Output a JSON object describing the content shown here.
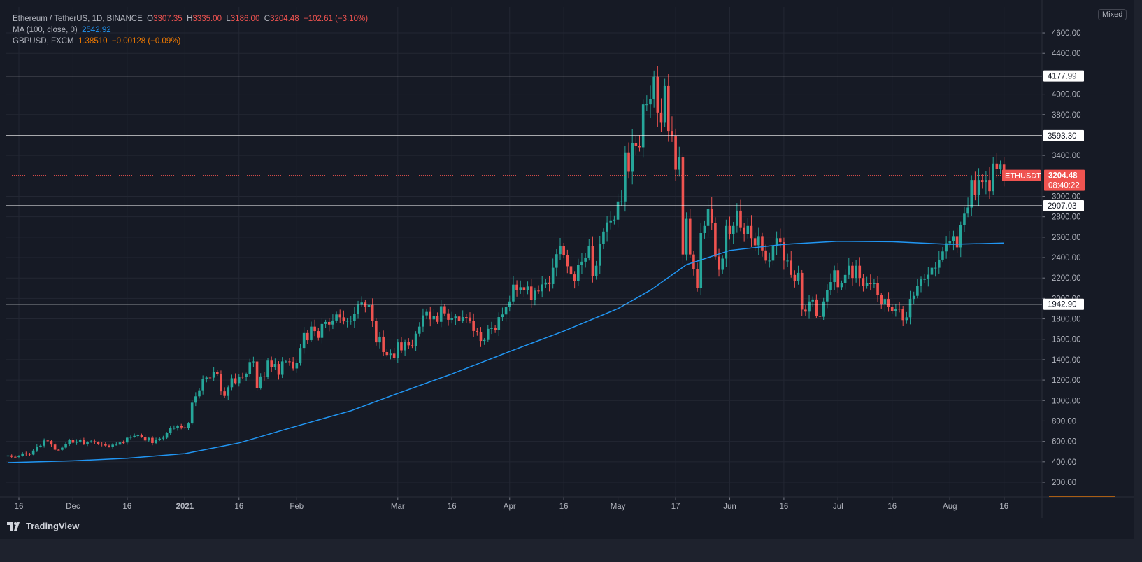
{
  "legend": {
    "symbol": "Ethereum / TetherUS, 1D, BINANCE",
    "o_label": "O",
    "o": "3307.35",
    "h_label": "H",
    "h": "3335.00",
    "l_label": "L",
    "l": "3186.00",
    "c_label": "C",
    "c": "3204.48",
    "change": "−102.61 (−3.10%)",
    "ma_label": "MA (100, close, 0)",
    "ma_value": "2542.92",
    "gbp_label": "GBPUSD, FXCM",
    "gbp_value": "1.38510",
    "gbp_change": "−0.00128 (−0.09%)"
  },
  "scale_mode": "Mixed",
  "branding": "TradingView",
  "colors": {
    "up": "#26a69a",
    "down": "#ef5350",
    "ma": "#2196f3",
    "gbpusd": "#f57c00",
    "hline": "#ffffff"
  },
  "chart_data": {
    "type": "candlestick",
    "interval": "1D",
    "y_ticks": [
      "200.00",
      "400.00",
      "600.00",
      "800.00",
      "1000.00",
      "1200.00",
      "1400.00",
      "1600.00",
      "1800.00",
      "2000.00",
      "2200.00",
      "2400.00",
      "2600.00",
      "2800.00",
      "3000.00",
      "3400.00",
      "3800.00",
      "4000.00",
      "4400.00",
      "4600.00"
    ],
    "ylim": [
      30,
      4800
    ],
    "x_ticks": [
      {
        "label": "16",
        "date": "2020-11-16"
      },
      {
        "label": "Dec",
        "date": "2020-12-01"
      },
      {
        "label": "16",
        "date": "2020-12-16"
      },
      {
        "label": "2021",
        "date": "2021-01-01",
        "bold": true
      },
      {
        "label": "16",
        "date": "2021-01-16"
      },
      {
        "label": "Feb",
        "date": "2021-02-01"
      },
      {
        "label": "Mar",
        "date": "2021-03-01"
      },
      {
        "label": "16",
        "date": "2021-03-16"
      },
      {
        "label": "Apr",
        "date": "2021-04-01"
      },
      {
        "label": "16",
        "date": "2021-04-16"
      },
      {
        "label": "May",
        "date": "2021-05-01"
      },
      {
        "label": "17",
        "date": "2021-05-17"
      },
      {
        "label": "Jun",
        "date": "2021-06-01"
      },
      {
        "label": "16",
        "date": "2021-06-16"
      },
      {
        "label": "Jul",
        "date": "2021-07-01"
      },
      {
        "label": "16",
        "date": "2021-07-16"
      },
      {
        "label": "Aug",
        "date": "2021-08-01"
      },
      {
        "label": "16",
        "date": "2021-08-16"
      }
    ],
    "horizontal_levels": [
      "4177.99",
      "3593.30",
      "2907.03",
      "1942.90"
    ],
    "last_price": {
      "label": "ETHUSDT",
      "value": "3204.48",
      "countdown": "08:40:22"
    },
    "closes_by_month": [
      {
        "month": "2020-11",
        "first_day": 13,
        "closes": [
          462,
          449,
          447,
          460,
          482,
          479,
          471,
          510,
          549,
          558,
          609,
          604,
          569,
          518,
          517,
          539,
          575,
          615
        ]
      },
      {
        "month": "2020-12",
        "first_day": 1,
        "closes": [
          587,
          598,
          616,
          571,
          596,
          601,
          591,
          577,
          573,
          559,
          546,
          568,
          568,
          590,
          589,
          636,
          643,
          654,
          659,
          645,
          609,
          635,
          584,
          612,
          627,
          635,
          683,
          731,
          732,
          752,
          737
        ]
      },
      {
        "month": "2021-01",
        "first_day": 1,
        "closes": [
          730,
          775,
          979,
          1041,
          1100,
          1208,
          1225,
          1224,
          1281,
          1262,
          1090,
          1045,
          1130,
          1218,
          1171,
          1233,
          1230,
          1257,
          1377,
          1382,
          1121,
          1236,
          1231,
          1391,
          1324,
          1358,
          1252,
          1383,
          1383,
          1380,
          1314
        ]
      },
      {
        "month": "2021-02",
        "first_day": 1,
        "closes": [
          1369,
          1515,
          1661,
          1591,
          1724,
          1680,
          1614,
          1750,
          1770,
          1744,
          1784,
          1843,
          1815,
          1776,
          1780,
          1781,
          1846,
          1937,
          1960,
          1919,
          1935,
          1781,
          1570,
          1626,
          1475,
          1446,
          1459,
          1418
        ]
      },
      {
        "month": "2021-03",
        "first_day": 1,
        "closes": [
          1570,
          1492,
          1575,
          1541,
          1533,
          1655,
          1724,
          1834,
          1868,
          1795,
          1826,
          1771,
          1924,
          1854,
          1791,
          1807,
          1823,
          1779,
          1817,
          1813,
          1783,
          1681,
          1669,
          1584,
          1593,
          1702,
          1713,
          1689,
          1817,
          1843,
          1919
        ]
      },
      {
        "month": "2021-04",
        "first_day": 1,
        "closes": [
          1970,
          2135,
          2078,
          2110,
          2084,
          2117,
          1982,
          2076,
          2069,
          2137,
          2155,
          2140,
          2300,
          2433,
          2514,
          2421,
          2315,
          2235,
          2170,
          2329,
          2360,
          2400,
          2510,
          2220,
          2320,
          2534,
          2655,
          2745,
          2758,
          2772
        ]
      },
      {
        "month": "2021-05",
        "first_day": 1,
        "closes": [
          2950,
          2950,
          3430,
          3240,
          3520,
          3490,
          3480,
          3900,
          3900,
          3950,
          4170,
          3820,
          3720,
          4080,
          3640,
          3590,
          3260,
          3380,
          2430,
          2780,
          2430,
          2290,
          2100,
          2640,
          2710,
          2880,
          2740,
          2410,
          2280,
          2390,
          2710
        ]
      },
      {
        "month": "2021-06",
        "first_day": 1,
        "closes": [
          2630,
          2710,
          2860,
          2690,
          2630,
          2710,
          2590,
          2520,
          2610,
          2470,
          2370,
          2370,
          2510,
          2590,
          2550,
          2370,
          2370,
          2230,
          2170,
          2250,
          1890,
          1870,
          1970,
          1990,
          1830,
          1820,
          1970,
          2080,
          2160,
          2275
        ]
      },
      {
        "month": "2021-07",
        "first_day": 1,
        "closes": [
          2110,
          2150,
          2230,
          2320,
          2200,
          2320,
          2200,
          2120,
          2150,
          2140,
          2150,
          2030,
          1940,
          1995,
          1917,
          1876,
          1898,
          1894,
          1788,
          1815,
          1995,
          2025,
          2123,
          2187,
          2190,
          2232,
          2300,
          2300,
          2380,
          2460,
          2540
        ]
      },
      {
        "month": "2021-08",
        "first_day": 1,
        "closes": [
          2560,
          2610,
          2500,
          2720,
          2830,
          2890,
          3160,
          3010,
          3160,
          3140,
          3160,
          3050,
          3320,
          3270,
          3310,
          3204
        ]
      }
    ],
    "ma_100": [
      {
        "date": "2020-11-13",
        "value": 392
      },
      {
        "date": "2020-12-01",
        "value": 410
      },
      {
        "date": "2020-12-16",
        "value": 435
      },
      {
        "date": "2021-01-01",
        "value": 480
      },
      {
        "date": "2021-01-16",
        "value": 585
      },
      {
        "date": "2021-02-01",
        "value": 750
      },
      {
        "date": "2021-02-16",
        "value": 900
      },
      {
        "date": "2021-03-01",
        "value": 1070
      },
      {
        "date": "2021-03-16",
        "value": 1260
      },
      {
        "date": "2021-04-01",
        "value": 1480
      },
      {
        "date": "2021-04-16",
        "value": 1680
      },
      {
        "date": "2021-05-01",
        "value": 1900
      },
      {
        "date": "2021-05-10",
        "value": 2080
      },
      {
        "date": "2021-05-20",
        "value": 2330
      },
      {
        "date": "2021-06-01",
        "value": 2470
      },
      {
        "date": "2021-06-16",
        "value": 2530
      },
      {
        "date": "2021-07-01",
        "value": 2560
      },
      {
        "date": "2021-07-16",
        "value": 2555
      },
      {
        "date": "2021-08-01",
        "value": 2530
      },
      {
        "date": "2021-08-16",
        "value": 2542
      }
    ]
  }
}
